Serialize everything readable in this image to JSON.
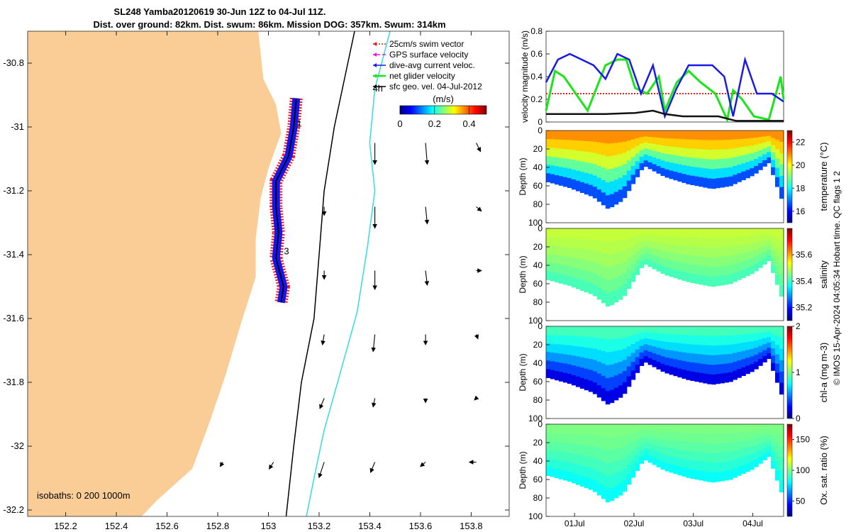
{
  "chart_data": [
    {
      "type": "map",
      "title_line1": "SL248 Yamba20120619 30-Jun 12Z to 04-Jul 11Z.",
      "title_line2": "Dist. over ground: 82km. Dist. swum: 86km. Mission DOG: 357km. Swum: 314km",
      "xlim": [
        152.05,
        153.95
      ],
      "ylim": [
        -32.22,
        -30.7
      ],
      "xticks": [
        152.2,
        152.4,
        152.6,
        152.8,
        153.0,
        153.2,
        153.4,
        153.6,
        153.8
      ],
      "xtick_labels": [
        "152.2",
        "152.4",
        "152.6",
        "152.8",
        "153",
        "153.2",
        "153.4",
        "153.6",
        "153.8"
      ],
      "yticks": [
        -30.8,
        -31.0,
        -31.2,
        -31.4,
        -31.6,
        -31.8,
        -32.0,
        -32.2
      ],
      "ytick_labels": [
        "-30.8",
        "-31",
        "-31.2",
        "-31.4",
        "-31.6",
        "-31.8",
        "-32",
        "-32.2"
      ],
      "legend": [
        {
          "label": "25cm/s swim vector",
          "color": "#e8201c",
          "style": "dotted-arrow"
        },
        {
          "label": "GPS surface velocity",
          "color": "#e619e6",
          "style": "dashed-arrow"
        },
        {
          "label": "dive-avg current veloc.",
          "color": "#1a1ae6",
          "style": "arrow"
        },
        {
          "label": "net glider velocity",
          "color": "#19e619",
          "style": "arrow"
        },
        {
          "label": "sfc geo. vel. 04-Jul-2012",
          "color": "#000000",
          "style": "arrow"
        }
      ],
      "colorbar": {
        "label": "(m/s)",
        "ticks": [
          0,
          0.2,
          0.4
        ],
        "tick_labels": [
          "0",
          "0.2",
          "0.4"
        ],
        "range": [
          0,
          0.5
        ]
      },
      "isobaths_label": "isobaths: 0   200  1000m",
      "markers": [
        {
          "label": "1",
          "lon": 153.1,
          "lat": -30.99
        },
        {
          "label": "3",
          "lon": 153.05,
          "lat": -31.39
        },
        {
          "label": "4h",
          "lon": 153.4,
          "lat": -30.88
        }
      ],
      "track": [
        {
          "lon": 153.11,
          "lat": -30.91
        },
        {
          "lon": 153.1,
          "lat": -31.0
        },
        {
          "lon": 153.08,
          "lat": -31.09
        },
        {
          "lon": 153.03,
          "lat": -31.17
        },
        {
          "lon": 153.03,
          "lat": -31.25
        },
        {
          "lon": 153.04,
          "lat": -31.33
        },
        {
          "lon": 153.03,
          "lat": -31.41
        },
        {
          "lon": 153.06,
          "lat": -31.5
        },
        {
          "lon": 153.05,
          "lat": -31.55
        }
      ],
      "coast": [
        {
          "lon": 152.96,
          "lat": -30.7
        },
        {
          "lon": 152.98,
          "lat": -30.85
        },
        {
          "lon": 153.03,
          "lat": -30.93
        },
        {
          "lon": 153.05,
          "lat": -31.02
        },
        {
          "lon": 153.0,
          "lat": -31.13
        },
        {
          "lon": 152.97,
          "lat": -31.22
        },
        {
          "lon": 152.95,
          "lat": -31.35
        },
        {
          "lon": 152.95,
          "lat": -31.47
        },
        {
          "lon": 152.89,
          "lat": -31.62
        },
        {
          "lon": 152.83,
          "lat": -31.78
        },
        {
          "lon": 152.77,
          "lat": -31.92
        },
        {
          "lon": 152.7,
          "lat": -32.07
        },
        {
          "lon": 152.56,
          "lat": -32.17
        },
        {
          "lon": 152.5,
          "lat": -32.22
        }
      ],
      "isobath_200": [
        {
          "lon": 153.34,
          "lat": -30.7
        },
        {
          "lon": 153.3,
          "lat": -30.85
        },
        {
          "lon": 153.26,
          "lat": -31.0
        },
        {
          "lon": 153.22,
          "lat": -31.2
        },
        {
          "lon": 153.2,
          "lat": -31.4
        },
        {
          "lon": 153.18,
          "lat": -31.6
        },
        {
          "lon": 153.13,
          "lat": -31.8
        },
        {
          "lon": 153.1,
          "lat": -32.0
        },
        {
          "lon": 153.07,
          "lat": -32.22
        }
      ],
      "isobath_1000": [
        {
          "lon": 153.48,
          "lat": -30.7
        },
        {
          "lon": 153.42,
          "lat": -30.88
        },
        {
          "lon": 153.4,
          "lat": -31.05
        },
        {
          "lon": 153.42,
          "lat": -31.2
        },
        {
          "lon": 153.39,
          "lat": -31.38
        },
        {
          "lon": 153.35,
          "lat": -31.58
        },
        {
          "lon": 153.28,
          "lat": -31.78
        },
        {
          "lon": 153.22,
          "lat": -31.95
        },
        {
          "lon": 153.18,
          "lat": -32.1
        },
        {
          "lon": 153.15,
          "lat": -32.22
        }
      ],
      "current_vectors": [
        {
          "lon": 153.42,
          "lat": -31.05,
          "u": 0.0,
          "v": -0.25
        },
        {
          "lon": 153.62,
          "lat": -31.05,
          "u": 0.02,
          "v": -0.25
        },
        {
          "lon": 153.82,
          "lat": -31.05,
          "u": 0.05,
          "v": -0.1
        },
        {
          "lon": 153.22,
          "lat": -31.25,
          "u": 0.0,
          "v": -0.1
        },
        {
          "lon": 153.42,
          "lat": -31.25,
          "u": 0.0,
          "v": -0.25
        },
        {
          "lon": 153.62,
          "lat": -31.25,
          "u": 0.02,
          "v": -0.2
        },
        {
          "lon": 153.82,
          "lat": -31.25,
          "u": 0.06,
          "v": -0.05
        },
        {
          "lon": 153.22,
          "lat": -31.45,
          "u": 0.0,
          "v": -0.1
        },
        {
          "lon": 153.42,
          "lat": -31.45,
          "u": 0.0,
          "v": -0.22
        },
        {
          "lon": 153.62,
          "lat": -31.45,
          "u": 0.02,
          "v": -0.17
        },
        {
          "lon": 153.82,
          "lat": -31.45,
          "u": 0.06,
          "v": 0.0
        },
        {
          "lon": 153.22,
          "lat": -31.65,
          "u": -0.02,
          "v": -0.12
        },
        {
          "lon": 153.42,
          "lat": -31.65,
          "u": -0.02,
          "v": -0.2
        },
        {
          "lon": 153.62,
          "lat": -31.65,
          "u": 0.0,
          "v": -0.12
        },
        {
          "lon": 153.82,
          "lat": -31.65,
          "u": 0.02,
          "v": -0.05
        },
        {
          "lon": 153.22,
          "lat": -31.85,
          "u": -0.05,
          "v": -0.12
        },
        {
          "lon": 153.42,
          "lat": -31.85,
          "u": -0.02,
          "v": -0.1
        },
        {
          "lon": 153.62,
          "lat": -31.85,
          "u": 0.0,
          "v": -0.05
        },
        {
          "lon": 153.82,
          "lat": -31.85,
          "u": -0.02,
          "v": -0.02
        },
        {
          "lon": 153.22,
          "lat": -32.05,
          "u": -0.06,
          "v": -0.18
        },
        {
          "lon": 153.42,
          "lat": -32.05,
          "u": -0.05,
          "v": -0.12
        },
        {
          "lon": 153.62,
          "lat": -32.05,
          "u": -0.06,
          "v": -0.05
        },
        {
          "lon": 153.82,
          "lat": -32.05,
          "u": -0.08,
          "v": 0.0
        },
        {
          "lon": 153.02,
          "lat": -32.05,
          "u": -0.05,
          "v": -0.08
        },
        {
          "lon": 152.82,
          "lat": -32.05,
          "u": -0.03,
          "v": -0.05
        }
      ]
    },
    {
      "type": "line",
      "ylabel": "velocity magnitude (m/s)",
      "ylim": [
        0,
        0.8
      ],
      "yticks": [
        0,
        0.2,
        0.4,
        0.6,
        0.8
      ],
      "ytick_labels": [
        "0",
        "0.2",
        "0.4",
        "0.6",
        "0.8"
      ],
      "xlim": [
        0,
        4
      ],
      "series": [
        {
          "name": "25cm/s swim vector",
          "color": "#e8201c",
          "x": [
            0,
            4
          ],
          "y": [
            0.25,
            0.25
          ]
        },
        {
          "name": "net glider velocity",
          "color": "#19e619",
          "x": [
            0,
            0.15,
            0.3,
            0.5,
            0.7,
            0.85,
            1.0,
            1.2,
            1.35,
            1.5,
            1.7,
            1.9,
            2.0,
            2.2,
            2.4,
            2.6,
            2.85,
            3.05,
            3.15,
            3.3,
            3.5,
            3.75,
            3.95,
            4.0
          ],
          "y": [
            0.1,
            0.45,
            0.4,
            0.25,
            0.1,
            0.3,
            0.5,
            0.55,
            0.55,
            0.3,
            0.25,
            0.4,
            0.1,
            0.35,
            0.45,
            0.35,
            0.25,
            0.02,
            0.28,
            0.2,
            0.05,
            0.02,
            0.4,
            0.2
          ]
        },
        {
          "name": "dive-avg current veloc.",
          "color": "#1a1ae6",
          "x": [
            0,
            0.2,
            0.4,
            0.6,
            0.8,
            1.0,
            1.2,
            1.4,
            1.6,
            1.8,
            2.0,
            2.2,
            2.4,
            2.6,
            2.8,
            3.0,
            3.15,
            3.35,
            3.55,
            3.8,
            4.0
          ],
          "y": [
            0.35,
            0.55,
            0.6,
            0.55,
            0.5,
            0.38,
            0.6,
            0.55,
            0.25,
            0.5,
            0.05,
            0.3,
            0.5,
            0.5,
            0.5,
            0.4,
            0.05,
            0.55,
            0.25,
            0.25,
            0.18
          ]
        },
        {
          "name": "sfc geo. vel.",
          "color": "#111111",
          "x": [
            0,
            0.5,
            1.0,
            1.5,
            1.8,
            2.0,
            2.3,
            2.6,
            2.9,
            3.2,
            3.6,
            4.0
          ],
          "y": [
            0.07,
            0.07,
            0.07,
            0.08,
            0.1,
            0.07,
            0.05,
            0.05,
            0.05,
            0.01,
            0.01,
            0.01
          ]
        }
      ]
    },
    {
      "type": "heatmap",
      "variable": "temperature",
      "cblabel": "temperature (°C)",
      "clim": [
        15,
        23
      ],
      "cbticks": [
        16,
        18,
        20,
        22
      ],
      "cbtick_labels": [
        "16",
        "18",
        "20",
        "22"
      ],
      "ylabel": "Depth (m)",
      "ylim": [
        100,
        0
      ],
      "yticks": [
        0,
        20,
        40,
        60,
        80,
        100
      ],
      "ytick_labels": [
        "0",
        "20",
        "40",
        "60",
        "80",
        "100"
      ],
      "bottom_depth": [
        {
          "x": 0,
          "d": 55
        },
        {
          "x": 0.4,
          "d": 62
        },
        {
          "x": 0.8,
          "d": 72
        },
        {
          "x": 1.05,
          "d": 85
        },
        {
          "x": 1.3,
          "d": 75
        },
        {
          "x": 1.65,
          "d": 38
        },
        {
          "x": 2.0,
          "d": 50
        },
        {
          "x": 2.4,
          "d": 58
        },
        {
          "x": 2.8,
          "d": 63
        },
        {
          "x": 3.1,
          "d": 60
        },
        {
          "x": 3.5,
          "d": 48
        },
        {
          "x": 3.75,
          "d": 35
        },
        {
          "x": 4.0,
          "d": 80
        }
      ],
      "surface_value": 21,
      "deep_value": 16
    },
    {
      "type": "heatmap",
      "variable": "salinity",
      "cblabel": "salinity",
      "clim": [
        35.1,
        35.8
      ],
      "cbticks": [
        35.2,
        35.4,
        35.6
      ],
      "cbtick_labels": [
        "35.2",
        "35.4",
        "35.6"
      ],
      "ylabel": "Depth (m)",
      "ylim": [
        100,
        0
      ],
      "yticks": [
        0,
        20,
        40,
        60,
        80,
        100
      ],
      "ytick_labels": [
        "0",
        "20",
        "40",
        "60",
        "80",
        "100"
      ],
      "surface_value": 35.5,
      "deep_value": 35.4
    },
    {
      "type": "heatmap",
      "variable": "chl-a",
      "cblabel": "chl-a (mg m-3)",
      "clim": [
        0,
        2
      ],
      "cbticks": [
        0,
        1,
        2
      ],
      "cbtick_labels": [
        "0",
        "1",
        "2"
      ],
      "ylabel": "Depth (m)",
      "ylim": [
        100,
        0
      ],
      "yticks": [
        0,
        20,
        40,
        60,
        80,
        100
      ],
      "ytick_labels": [
        "0",
        "20",
        "40",
        "60",
        "80",
        "100"
      ],
      "surface_value": 0.9,
      "deep_value": 0.1
    },
    {
      "type": "heatmap",
      "variable": "oxygen saturation",
      "cblabel": "Ox. sat. ratio (%)",
      "clim": [
        25,
        175
      ],
      "cbticks": [
        50,
        100,
        150
      ],
      "cbtick_labels": [
        "50",
        "100",
        "150"
      ],
      "ylabel": "Depth (m)",
      "ylim": [
        100,
        0
      ],
      "yticks": [
        0,
        20,
        40,
        60,
        80,
        100
      ],
      "ytick_labels": [
        "0",
        "20",
        "40",
        "60",
        "80",
        "100"
      ],
      "xticks": [
        0.48,
        1.48,
        2.48,
        3.48
      ],
      "xtick_labels": [
        "01Jul",
        "02Jul",
        "03Jul",
        "04Jul"
      ],
      "surface_value": 100,
      "deep_value": 80
    }
  ],
  "footer_note": "© IMOS 15-Apr-2024 04:05:34 Hobart time. QC flags 1  2"
}
